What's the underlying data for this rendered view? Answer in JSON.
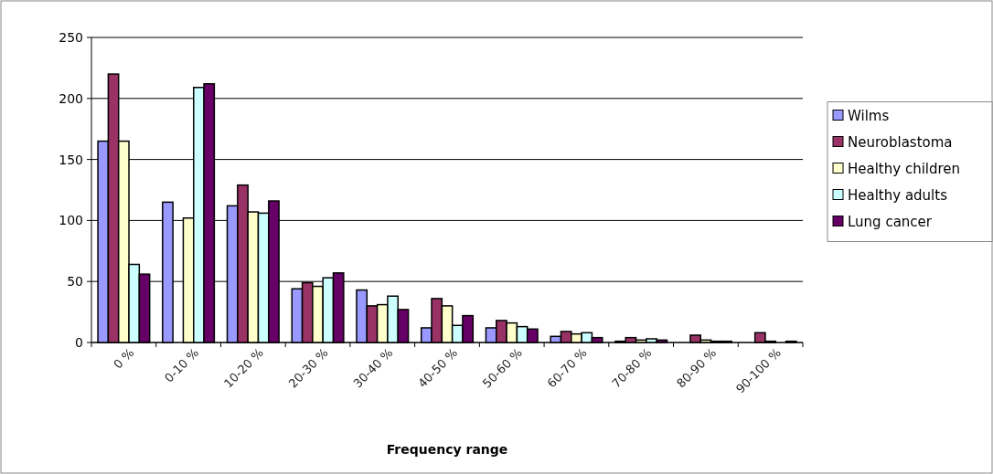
{
  "chart_data": {
    "type": "bar",
    "xlabel": "Frequency range",
    "categories": [
      "0 %",
      "0-10 %",
      "10-20 %",
      "20-30 %",
      "30-40 %",
      "40-50 %",
      "50-60 %",
      "60-70 %",
      "70-80 %",
      "80-90 %",
      "90-100 %"
    ],
    "series": [
      {
        "name": "Wilms",
        "color": "#9999ff",
        "values": [
          165,
          115,
          112,
          44,
          43,
          12,
          12,
          5,
          1,
          0,
          0
        ]
      },
      {
        "name": "Neuroblastoma",
        "color": "#993366",
        "values": [
          220,
          0,
          129,
          49,
          30,
          36,
          18,
          9,
          4,
          6,
          8
        ]
      },
      {
        "name": "Healthy children",
        "color": "#ffffcc",
        "values": [
          165,
          102,
          107,
          46,
          31,
          30,
          16,
          7,
          2,
          2,
          1
        ]
      },
      {
        "name": "Healthy adults",
        "color": "#ccffff",
        "values": [
          64,
          209,
          106,
          53,
          38,
          14,
          13,
          8,
          3,
          1,
          0
        ]
      },
      {
        "name": "Lung cancer",
        "color": "#660066",
        "values": [
          56,
          212,
          116,
          57,
          27,
          22,
          11,
          4,
          2,
          1,
          1
        ]
      }
    ],
    "ylim": [
      0,
      250
    ],
    "yticks": [
      0,
      50,
      100,
      150,
      200,
      250
    ],
    "grid": "y",
    "legend": "right"
  }
}
